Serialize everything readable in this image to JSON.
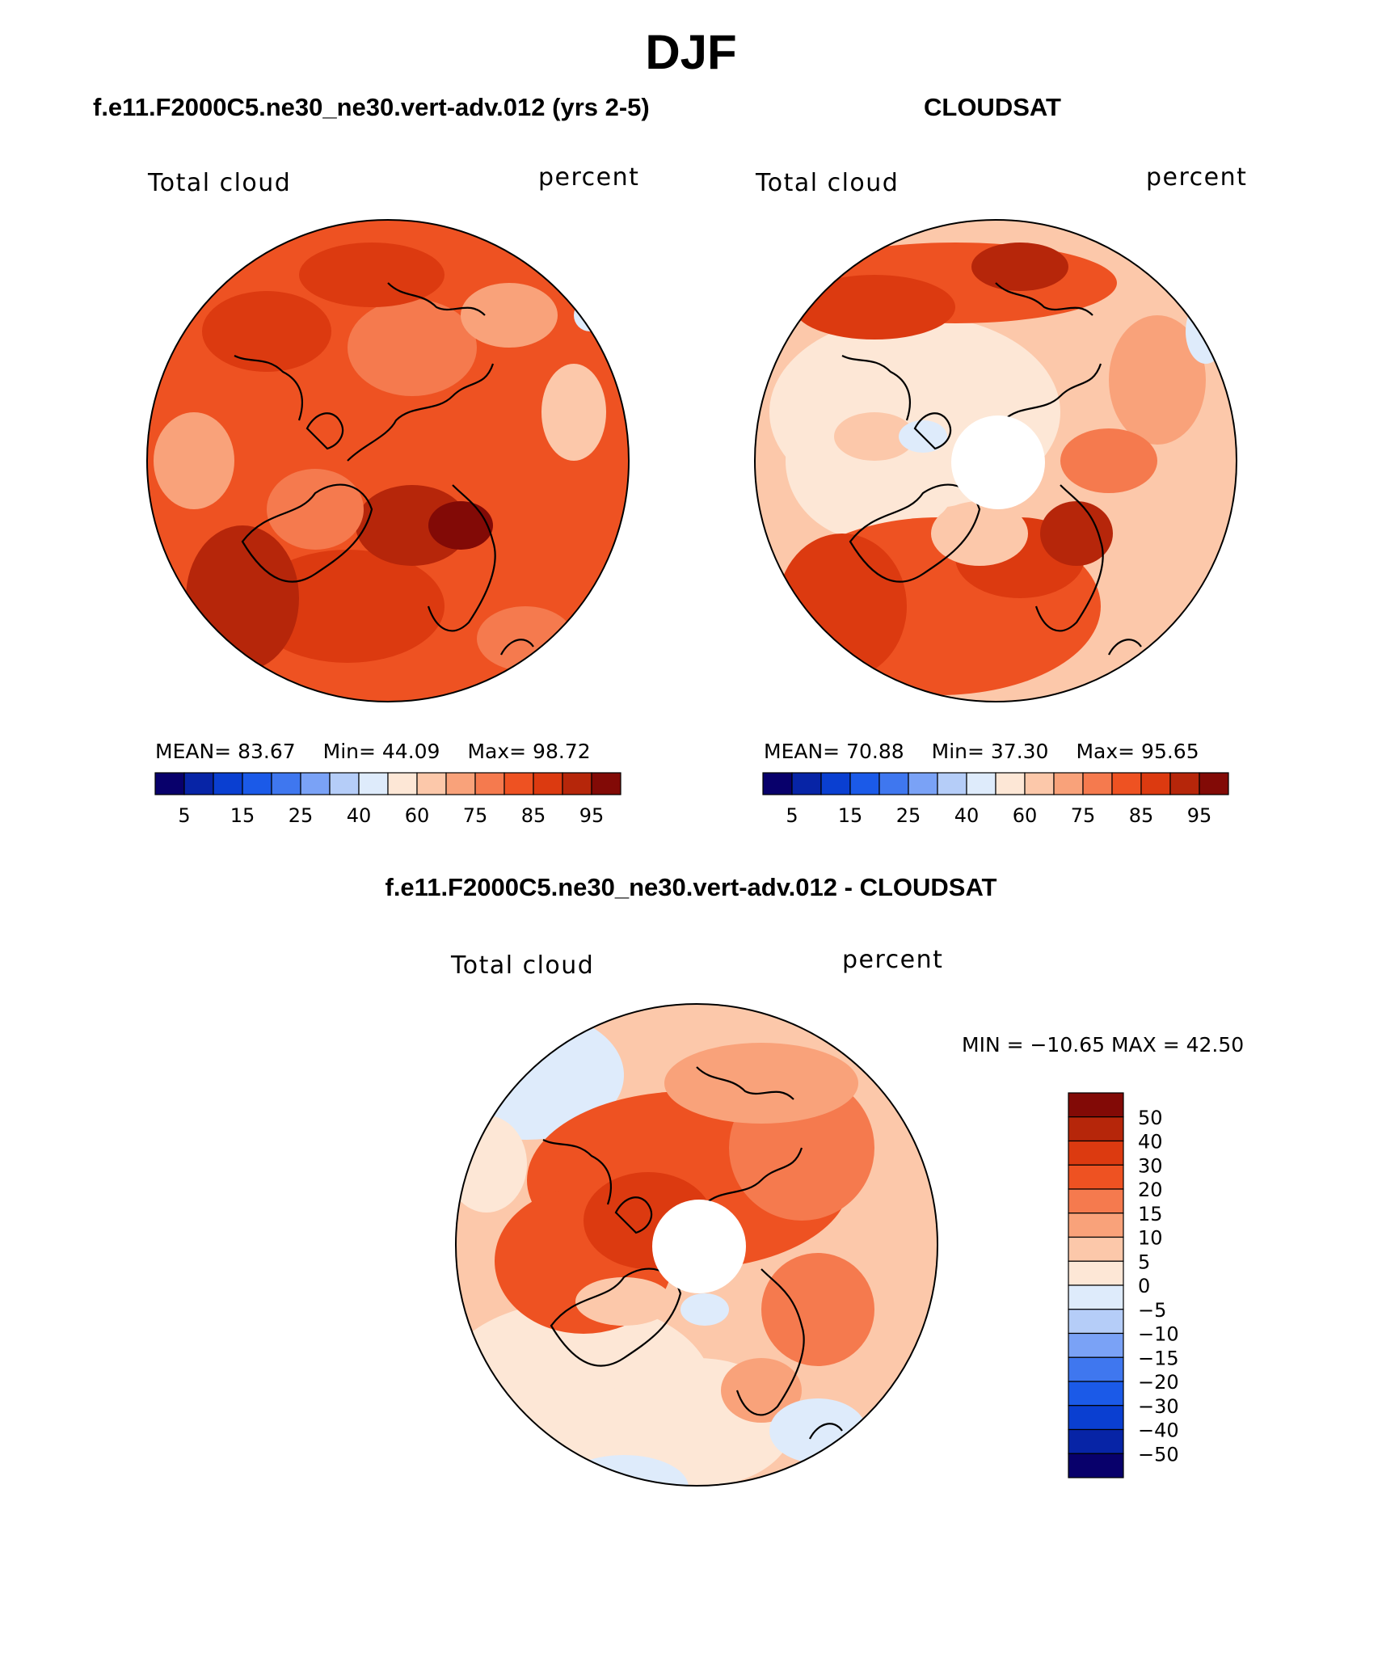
{
  "figure": {
    "title": "DJF"
  },
  "panels": [
    {
      "id": "model",
      "title": "f.e11.F2000C5.ne30_ne30.vert-adv.012 (yrs 2-5)",
      "left_label": "Total cloud",
      "right_label": "percent",
      "stats": {
        "mean_text": "MEAN=  83.67",
        "min_text": "Min=  44.09",
        "max_text": "Max=  98.72"
      },
      "colorbar": {
        "colors": [
          "#08006b",
          "#0724a6",
          "#0a3fd1",
          "#1b5ae8",
          "#3f77ef",
          "#7aa2f6",
          "#b5cdf8",
          "#deebfb",
          "#fde7d6",
          "#fcc8aa",
          "#f9a27a",
          "#f57a4e",
          "#ee5222",
          "#dc3a10",
          "#b6260a",
          "#820a06"
        ],
        "tick_labels": [
          "5",
          "15",
          "25",
          "40",
          "60",
          "75",
          "85",
          "95"
        ]
      },
      "map": {
        "north_pole_missing": false
      }
    },
    {
      "id": "obs",
      "title": "CLOUDSAT",
      "left_label": "Total cloud",
      "right_label": "percent",
      "stats": {
        "mean_text": "MEAN=  70.88",
        "min_text": "Min=  37.30",
        "max_text": "Max=  95.65"
      },
      "colorbar": {
        "colors": [
          "#08006b",
          "#0724a6",
          "#0a3fd1",
          "#1b5ae8",
          "#3f77ef",
          "#7aa2f6",
          "#b5cdf8",
          "#deebfb",
          "#fde7d6",
          "#fcc8aa",
          "#f9a27a",
          "#f57a4e",
          "#ee5222",
          "#dc3a10",
          "#b6260a",
          "#820a06"
        ],
        "tick_labels": [
          "5",
          "15",
          "25",
          "40",
          "60",
          "75",
          "85",
          "95"
        ]
      },
      "map": {
        "north_pole_missing": true
      }
    }
  ],
  "difference": {
    "title": "f.e11.F2000C5.ne30_ne30.vert-adv.012 - CLOUDSAT",
    "left_label": "Total cloud",
    "right_label": "percent",
    "minmax_text": "MIN = −10.65 MAX =   42.50",
    "colorbar": {
      "levels_top_to_bottom": [
        "50",
        "40",
        "30",
        "20",
        "15",
        "10",
        "5",
        "0",
        "−5",
        "−10",
        "−15",
        "−20",
        "−30",
        "−40",
        "−50"
      ],
      "colors_top_to_bottom": [
        "#820a06",
        "#b6260a",
        "#dc3a10",
        "#ee5222",
        "#f57a4e",
        "#f9a27a",
        "#fcc8aa",
        "#fde7d6",
        "#deebfb",
        "#b5cdf8",
        "#7aa2f6",
        "#3f77ef",
        "#1b5ae8",
        "#0a3fd1",
        "#0724a6",
        "#08006b"
      ]
    },
    "map": {
      "north_pole_missing": true
    }
  }
}
